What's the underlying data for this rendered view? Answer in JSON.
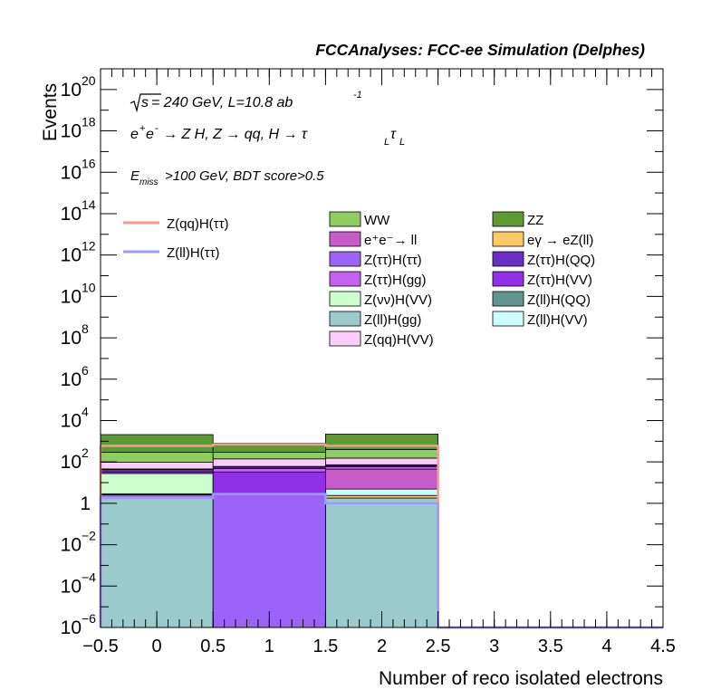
{
  "header": "FCCAnalyses: FCC-ee Simulation (Delphes)",
  "annotations": {
    "sqrt_s": "s",
    "energy_lumi": "= 240 GeV, L=10.8 ab",
    "lumi_exp": "-1",
    "process_pre": "e",
    "process_mid": "e",
    "process_text": "→ Z H, Z → qq, H → τ",
    "tau_sub": "L",
    "tau2": "τ",
    "tau2_sub": "L",
    "cut_E": "E",
    "cut_sub": "miss",
    "cut_text": ">100 GeV, BDT score>0.5"
  },
  "colors": {
    "WW": "#8fcd63",
    "ZZ": "#5e9a34",
    "ee_ll": "#c65bc9",
    "egamma": "#fdc966",
    "tautau_tautau": "#9c63f7",
    "tautau_QQ": "#6a2fc4",
    "tautau_gg": "#c561f0",
    "tautau_VV": "#9230e8",
    "nunu_VV": "#ccfdcc",
    "ll_QQ": "#609590",
    "ll_gg": "#9acacc",
    "ll_VV": "#cbfdfd",
    "qq_VV": "#fdcbfd",
    "sig_qq": "#f59a99",
    "sig_ll": "#9b9af9"
  },
  "chart_data": {
    "type": "bar",
    "stacked": true,
    "log_y": true,
    "xlabel": "Number of reco isolated electrons",
    "ylabel": "Events",
    "xlim": [
      -0.5,
      4.5
    ],
    "ylim": [
      1e-06,
      1e+21
    ],
    "bin_edges": [
      -0.5,
      0.5,
      1.5,
      2.5,
      3.5,
      4.5
    ],
    "x_ticks": [
      "−0.5",
      "0",
      "0.5",
      "1",
      "1.5",
      "2",
      "2.5",
      "3",
      "3.5",
      "4",
      "4.5"
    ],
    "y_ticks": [
      {
        "base": "10",
        "exp": "−6"
      },
      {
        "base": "10",
        "exp": "−4"
      },
      {
        "base": "10",
        "exp": "−2"
      },
      {
        "base": "1",
        "exp": ""
      },
      {
        "base": "10",
        "exp": "2"
      },
      {
        "base": "10",
        "exp": "4"
      },
      {
        "base": "10",
        "exp": "6"
      },
      {
        "base": "10",
        "exp": "8"
      },
      {
        "base": "10",
        "exp": "10"
      },
      {
        "base": "10",
        "exp": "12"
      },
      {
        "base": "10",
        "exp": "14"
      },
      {
        "base": "10",
        "exp": "16"
      },
      {
        "base": "10",
        "exp": "18"
      },
      {
        "base": "10",
        "exp": "20"
      }
    ],
    "stack_series": [
      {
        "key": "ll_gg",
        "name": "Z(ll)H(gg)",
        "values": [
          1.8,
          0,
          1.8,
          0,
          0
        ]
      },
      {
        "key": "tautau_tautau",
        "name": "Z(ττ)H(ττ)",
        "values": [
          0.8,
          2.8,
          0,
          0,
          0
        ]
      },
      {
        "key": "egamma",
        "name": "eγ → eZ(ll)",
        "values": [
          0,
          0,
          0.6,
          0,
          0
        ]
      },
      {
        "key": "ll_VV",
        "name": "Z(ll)H(VV)",
        "values": [
          0.3,
          0,
          2.5,
          0,
          0
        ]
      },
      {
        "key": "nunu_VV",
        "name": "Z(νν)H(VV)",
        "values": [
          25,
          0,
          0,
          0,
          0
        ]
      },
      {
        "key": "tautau_VV",
        "name": "Z(ττ)H(VV)",
        "values": [
          0,
          30,
          0,
          0,
          0
        ]
      },
      {
        "key": "ee_ll",
        "name": "e⁺e⁻→ ll",
        "values": [
          0,
          0,
          40,
          0,
          0
        ]
      },
      {
        "key": "tautau_gg",
        "name": "Z(ττ)H(gg)",
        "values": [
          5,
          15,
          15,
          0,
          0
        ]
      },
      {
        "key": "tautau_QQ",
        "name": "Z(ττ)H(QQ)",
        "values": [
          10,
          10,
          10,
          0,
          0
        ]
      },
      {
        "key": "ll_QQ",
        "name": "Z(ll)H(QQ)",
        "values": [
          3,
          3,
          3,
          0,
          0
        ]
      },
      {
        "key": "qq_VV",
        "name": "Z(qq)H(VV)",
        "values": [
          50,
          80,
          80,
          0,
          0
        ]
      },
      {
        "key": "WW",
        "name": "WW",
        "values": [
          200,
          150,
          250,
          0,
          0
        ]
      },
      {
        "key": "ZZ",
        "name": "ZZ",
        "values": [
          1800,
          500,
          1800,
          0,
          0
        ]
      }
    ],
    "line_series": [
      {
        "key": "sig_qq",
        "name": "Z(qq)H(ττ)",
        "values": [
          600,
          700,
          600,
          0,
          0
        ]
      },
      {
        "key": "sig_ll",
        "name": "Z(ll)H(ττ)",
        "values": [
          1.8,
          2.8,
          1.0,
          0,
          0
        ]
      }
    ],
    "legend_lines": [
      "sig_qq",
      "sig_ll"
    ],
    "legend_col1": [
      "WW",
      "ee_ll",
      "tautau_tautau",
      "tautau_gg",
      "nunu_VV",
      "ll_gg",
      "qq_VV"
    ],
    "legend_col2": [
      "ZZ",
      "egamma",
      "tautau_QQ",
      "tautau_VV",
      "ll_QQ",
      "ll_VV"
    ]
  }
}
